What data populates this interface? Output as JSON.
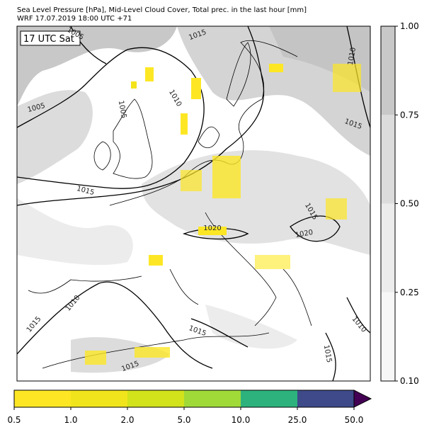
{
  "header": {
    "line1": "Sea Level Pressure [hPa], Mid-Level Cloud Cover, Total prec. in the last hour [mm]",
    "line2": "WRF 17.07.2019 18:00 UTC +71"
  },
  "map": {
    "time_label": "17 UTC Sat",
    "contour_labels": [
      "1005",
      "1015",
      "1010",
      "1005",
      "1015",
      "1005",
      "1015",
      "1020",
      "1020",
      "1010",
      "1015",
      "1015",
      "1010",
      "1015",
      "1015",
      "1015",
      "1010"
    ]
  },
  "cloud_colorbar": {
    "ticks": [
      "0.10",
      "0.25",
      "0.50",
      "0.75",
      "1.00"
    ]
  },
  "precip_colorbar": {
    "ticks": [
      "0.5",
      "1.0",
      "2.0",
      "5.0",
      "10.0",
      "25.0",
      "50.0"
    ]
  }
}
